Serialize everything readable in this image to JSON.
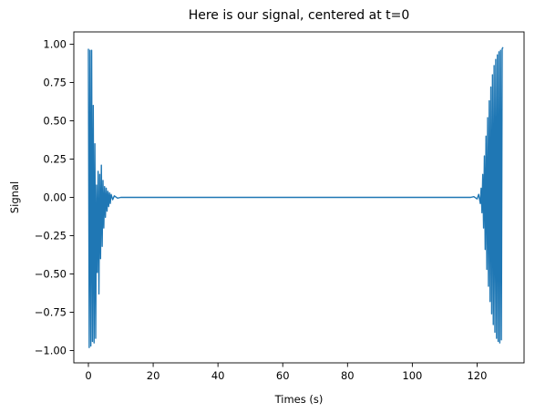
{
  "chart_data": {
    "type": "line",
    "title": "Here is our signal, centered at t=0",
    "xlabel": "Times (s)",
    "ylabel": "Signal",
    "xlim": [
      -4.5,
      134.5
    ],
    "ylim": [
      -1.08,
      1.08
    ],
    "xticks": [
      0,
      20,
      40,
      60,
      80,
      100,
      120
    ],
    "xtick_labels": [
      "0",
      "20",
      "40",
      "60",
      "80",
      "100",
      "120"
    ],
    "yticks": [
      -1.0,
      -0.75,
      -0.5,
      -0.25,
      0.0,
      0.25,
      0.5,
      0.75,
      1.0
    ],
    "ytick_labels": [
      "−1.00",
      "−0.75",
      "−0.50",
      "−0.25",
      "0.00",
      "0.25",
      "0.50",
      "0.75",
      "1.00"
    ],
    "grid": false,
    "color": "#1f77b4",
    "series": [
      {
        "x": [
          0,
          0.25,
          0.5,
          0.75,
          1.0,
          1.25,
          1.5,
          1.75,
          2.0,
          2.25,
          2.5,
          2.75,
          3.0,
          3.25,
          3.5,
          3.75,
          4.0,
          4.25,
          4.5,
          4.75,
          5.0,
          5.25,
          5.5,
          5.75,
          6.0,
          6.25,
          6.5,
          6.75,
          7.0,
          7.5,
          8.0,
          9.0,
          10.0,
          20.0,
          40.0,
          60.0,
          80.0,
          100.0,
          118.0,
          119.0,
          120.0,
          120.5,
          121.0,
          121.25,
          121.5,
          121.75,
          122.0,
          122.25,
          122.5,
          122.75,
          123.0,
          123.25,
          123.5,
          123.75,
          124.0,
          124.25,
          124.5,
          124.75,
          125.0,
          125.25,
          125.5,
          125.75,
          126.0,
          126.25,
          126.5,
          126.75,
          127.0,
          127.25,
          127.5,
          127.75,
          128.0
        ],
        "y": [
          0.97,
          -0.98,
          0.96,
          -0.97,
          0.96,
          -0.94,
          0.6,
          -0.95,
          0.35,
          -0.92,
          0.08,
          -0.49,
          0.17,
          -0.63,
          0.15,
          -0.4,
          0.21,
          -0.32,
          0.11,
          -0.2,
          0.07,
          -0.13,
          0.06,
          -0.09,
          0.04,
          -0.06,
          0.03,
          -0.04,
          0.02,
          -0.015,
          0.01,
          -0.005,
          0.0,
          0.0,
          0.0,
          0.0,
          0.0,
          0.0,
          0.0,
          0.005,
          -0.01,
          0.02,
          -0.04,
          0.06,
          -0.1,
          0.15,
          -0.2,
          0.27,
          -0.34,
          0.4,
          -0.47,
          0.52,
          -0.58,
          0.63,
          -0.68,
          0.72,
          -0.76,
          0.8,
          -0.83,
          0.86,
          -0.88,
          0.9,
          -0.92,
          0.93,
          -0.94,
          0.95,
          -0.95,
          0.96,
          -0.93,
          0.97,
          0.98
        ]
      }
    ]
  }
}
